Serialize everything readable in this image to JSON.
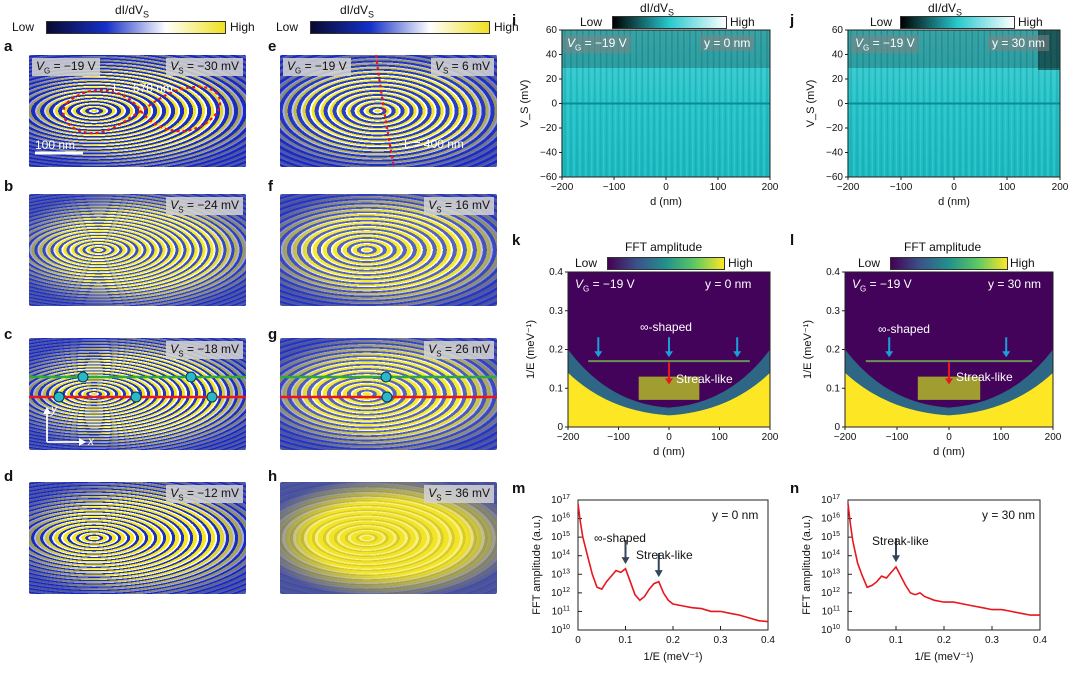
{
  "colorbars": {
    "didv_title": "dI/dV",
    "didv_sub": "S",
    "low": "Low",
    "high": "High",
    "fft_title": "FFT amplitude"
  },
  "panels": {
    "a": {
      "letter": "a",
      "vg": "V",
      "vg_sub": "G",
      "vg_val": " = −19 V",
      "vs": "V",
      "vs_sub": "S",
      "vs_val": " = −30 mV",
      "length": "L = 670 nm",
      "scalebar": "100 nm"
    },
    "b": {
      "letter": "b",
      "vs": "V",
      "vs_sub": "S",
      "vs_val": " = −24 mV"
    },
    "c": {
      "letter": "c",
      "vs": "V",
      "vs_sub": "S",
      "vs_val": " = −18 mV",
      "axis_x": "x",
      "axis_y": "y"
    },
    "d": {
      "letter": "d",
      "vs": "V",
      "vs_sub": "S",
      "vs_val": " = −12 mV"
    },
    "e": {
      "letter": "e",
      "vg": "V",
      "vg_sub": "G",
      "vg_val": " = −19 V",
      "vs": "V",
      "vs_sub": "S",
      "vs_val": " = 6 mV",
      "length": "L = 400 nm"
    },
    "f": {
      "letter": "f",
      "vs": "V",
      "vs_sub": "S",
      "vs_val": " = 16 mV"
    },
    "g": {
      "letter": "g",
      "vs": "V",
      "vs_sub": "S",
      "vs_val": " = 26 mV"
    },
    "h": {
      "letter": "h",
      "vs": "V",
      "vs_sub": "S",
      "vs_val": " = 36 mV"
    },
    "i": {
      "letter": "i",
      "vg": "V",
      "vg_sub": "G",
      "vg_val": " = −19 V",
      "y": "y = 0 nm"
    },
    "j": {
      "letter": "j",
      "vg": "V",
      "vg_sub": "G",
      "vg_val": " = −19 V",
      "y": "y = 30 nm"
    },
    "k": {
      "letter": "k",
      "vg": "V",
      "vg_sub": "G",
      "vg_val": " = −19 V",
      "y": "y = 0 nm",
      "ann_inf": "∞-shaped",
      "ann_streak": "Streak-like"
    },
    "l": {
      "letter": "l",
      "vg": "V",
      "vg_sub": "G",
      "vg_val": " = −19 V",
      "y": "y = 30 nm",
      "ann_inf": "∞-shaped",
      "ann_streak": "Streak-like"
    },
    "m": {
      "letter": "m",
      "y": "y = 0 nm",
      "ann_inf": "∞-shaped",
      "ann_streak": "Streak-like"
    },
    "n": {
      "letter": "n",
      "y": "y = 30 nm",
      "ann_streak": "Streak-like"
    }
  },
  "chart_data": [
    {
      "id": "i",
      "type": "heatmap",
      "title": "",
      "xlabel": "d (nm)",
      "ylabel": "V_S (mV)",
      "xlim": [
        -200,
        200
      ],
      "ylim": [
        -60,
        60
      ],
      "xticks": [
        "−200",
        "−100",
        "0",
        "100",
        "200"
      ],
      "yticks": [
        "60",
        "40",
        "20",
        "0",
        "−20",
        "−40",
        "−60"
      ]
    },
    {
      "id": "j",
      "type": "heatmap",
      "title": "",
      "xlabel": "d (nm)",
      "ylabel": "V_S (mV)",
      "xlim": [
        -200,
        200
      ],
      "ylim": [
        -60,
        60
      ],
      "xticks": [
        "−200",
        "−100",
        "0",
        "100",
        "200"
      ],
      "yticks": [
        "60",
        "40",
        "20",
        "0",
        "−20",
        "−40",
        "−60"
      ]
    },
    {
      "id": "k",
      "type": "heatmap",
      "title": "FFT amplitude",
      "xlabel": "d (nm)",
      "ylabel": "1/E (meV⁻¹)",
      "xlim": [
        -200,
        200
      ],
      "ylim": [
        0,
        0.4
      ],
      "xticks": [
        "−200",
        "−100",
        "0",
        "100",
        "200"
      ],
      "yticks": [
        "0.4",
        "0.3",
        "0.2",
        "0.1",
        "0"
      ],
      "arrows_d": [
        -140,
        0,
        135
      ],
      "arrow_y": 0.17,
      "streak_d": 0,
      "streak_y": 0.1
    },
    {
      "id": "l",
      "type": "heatmap",
      "title": "FFT amplitude",
      "xlabel": "d (nm)",
      "ylabel": "1/E (meV⁻¹)",
      "xlim": [
        -200,
        200
      ],
      "ylim": [
        0,
        0.4
      ],
      "xticks": [
        "−200",
        "−100",
        "0",
        "100",
        "200"
      ],
      "yticks": [
        "0.4",
        "0.3",
        "0.2",
        "0.1",
        "0"
      ],
      "arrows_d": [
        -115,
        110
      ],
      "arrow_y": 0.17,
      "streak_d": 0,
      "streak_y": 0.1
    },
    {
      "id": "m",
      "type": "line",
      "xlabel": "1/E (meV⁻¹)",
      "ylabel": "FFT amplitude (a.u.)",
      "xlim": [
        0,
        0.4
      ],
      "ylim_log10": [
        10,
        17
      ],
      "xticks": [
        "0",
        "0.1",
        "0.2",
        "0.3",
        "0.4"
      ],
      "yticks_exp": [
        "17",
        "16",
        "15",
        "14",
        "13",
        "12",
        "11",
        "10"
      ],
      "series": [
        {
          "name": "y = 0 nm",
          "x": [
            0,
            0.005,
            0.01,
            0.02,
            0.03,
            0.04,
            0.05,
            0.06,
            0.07,
            0.08,
            0.09,
            0.1,
            0.11,
            0.12,
            0.13,
            0.14,
            0.15,
            0.16,
            0.17,
            0.18,
            0.19,
            0.2,
            0.22,
            0.24,
            0.26,
            0.28,
            0.3,
            0.32,
            0.34,
            0.36,
            0.38,
            0.4
          ],
          "log10_y": [
            16.8,
            15.8,
            15.0,
            14.0,
            13.0,
            12.3,
            12.2,
            12.6,
            12.9,
            13.2,
            13.1,
            13.3,
            12.6,
            11.9,
            11.6,
            11.8,
            12.2,
            12.5,
            12.6,
            12.0,
            11.6,
            11.4,
            11.3,
            11.2,
            11.15,
            11.0,
            11.0,
            10.9,
            10.8,
            10.65,
            10.5,
            10.45
          ]
        }
      ],
      "arrows_x": [
        0.1,
        0.17
      ]
    },
    {
      "id": "n",
      "type": "line",
      "xlabel": "1/E (meV⁻¹)",
      "ylabel": "FFT amplitude (a.u.)",
      "xlim": [
        0,
        0.4
      ],
      "ylim_log10": [
        10,
        17
      ],
      "xticks": [
        "0",
        "0.1",
        "0.2",
        "0.3",
        "0.4"
      ],
      "yticks_exp": [
        "17",
        "16",
        "15",
        "14",
        "13",
        "12",
        "11",
        "10"
      ],
      "series": [
        {
          "name": "y = 30 nm",
          "x": [
            0,
            0.005,
            0.01,
            0.02,
            0.03,
            0.04,
            0.05,
            0.06,
            0.07,
            0.08,
            0.09,
            0.1,
            0.11,
            0.12,
            0.13,
            0.14,
            0.15,
            0.16,
            0.18,
            0.2,
            0.22,
            0.24,
            0.26,
            0.28,
            0.3,
            0.32,
            0.34,
            0.36,
            0.38,
            0.4
          ],
          "log10_y": [
            16.8,
            15.7,
            14.8,
            13.6,
            12.9,
            12.3,
            12.4,
            12.6,
            12.9,
            12.8,
            13.1,
            13.4,
            12.9,
            12.4,
            12.0,
            11.9,
            12.0,
            11.8,
            11.6,
            11.5,
            11.5,
            11.4,
            11.3,
            11.2,
            11.1,
            11.1,
            11.0,
            10.9,
            10.8,
            10.8
          ]
        }
      ],
      "arrows_x": [
        0.1
      ]
    }
  ],
  "colors": {
    "red": "#e8161e",
    "green": "#2faa3a",
    "cyan": "#1aa0d8",
    "marker": "#2ab7c8"
  }
}
